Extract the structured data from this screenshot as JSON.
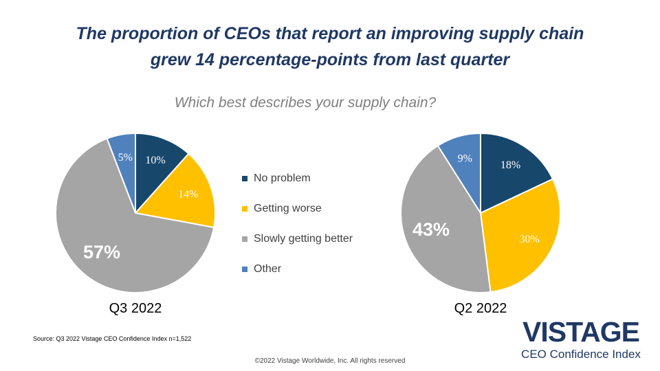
{
  "title_line1": "The proportion of CEOs that report an improving supply chain",
  "title_line2": "grew 14 percentage-points from last quarter",
  "subtitle": "Which best describes your supply chain?",
  "colors": {
    "no_problem": "#17476b",
    "getting_worse": "#ffc000",
    "slowly_getting_better": "#a5a5a5",
    "other": "#4f81bd",
    "title": "#1f3864"
  },
  "chart_data": [
    {
      "type": "pie",
      "label": "Q3 2022",
      "categories": [
        "No problem",
        "Getting worse",
        "Slowly getting better",
        "Other"
      ],
      "values": [
        10,
        14,
        57,
        5
      ],
      "value_labels": [
        "10%",
        "14%",
        "57%",
        "5%"
      ]
    },
    {
      "type": "pie",
      "label": "Q2 2022",
      "categories": [
        "No problem",
        "Getting worse",
        "Slowly getting better",
        "Other"
      ],
      "values": [
        18,
        30,
        43,
        9
      ],
      "value_labels": [
        "18%",
        "30%",
        "43%",
        "9%"
      ]
    }
  ],
  "legend": [
    {
      "label": "No problem",
      "color": "#17476b"
    },
    {
      "label": "Getting worse",
      "color": "#ffc000"
    },
    {
      "label": "Slowly getting better",
      "color": "#a5a5a5"
    },
    {
      "label": "Other",
      "color": "#4f81bd"
    }
  ],
  "source": "Source: Q3 2022 Vistage CEO Confidence Index n=1,522",
  "copyright": "©2022 Vistage Worldwide, Inc. All rights reserved",
  "logo": {
    "word": "VISTAGE",
    "sub": "CEO Confidence Index"
  }
}
